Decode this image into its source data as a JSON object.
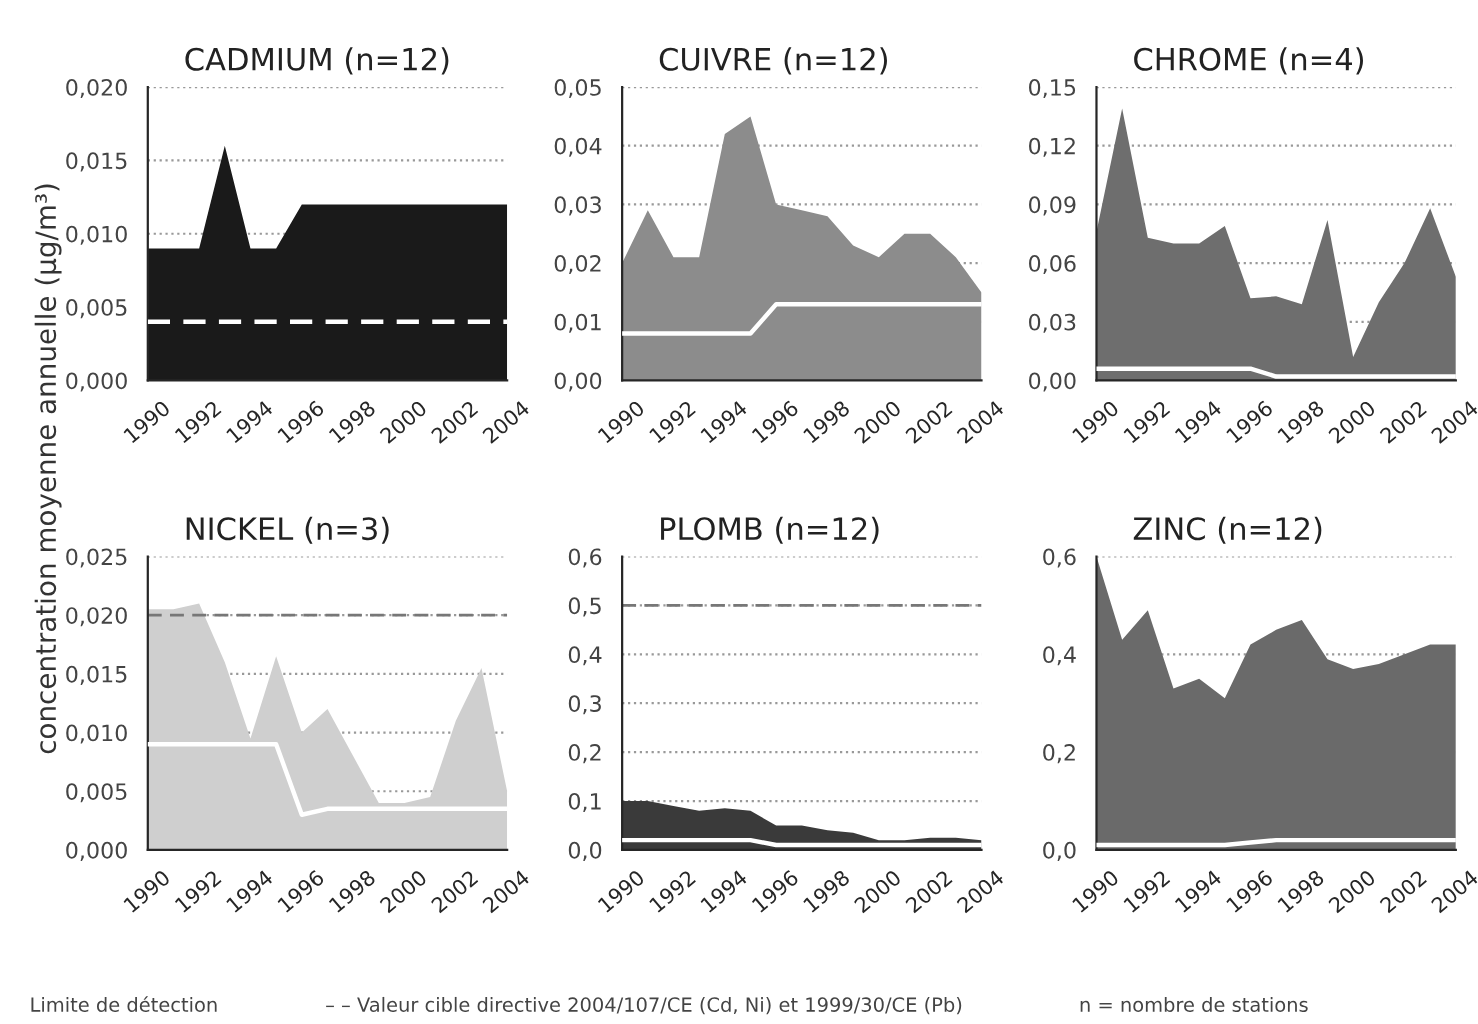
{
  "chart_data": [
    {
      "type": "area",
      "title": "CADMIUM (n=12)",
      "x": [
        1990,
        1991,
        1992,
        1993,
        1994,
        1995,
        1996,
        1997,
        1998,
        1999,
        2000,
        2001,
        2002,
        2003,
        2004
      ],
      "xlim": [
        1990,
        2004
      ],
      "xticks": [
        1990,
        1992,
        1994,
        1996,
        1998,
        2000,
        2002,
        2004
      ],
      "ylim": [
        0,
        0.02
      ],
      "yticks": [
        {
          "value": 0,
          "label": "0,000"
        },
        {
          "value": 0.005,
          "label": "0,005"
        },
        {
          "value": 0.01,
          "label": "0,010"
        },
        {
          "value": 0.015,
          "label": "0,015"
        },
        {
          "value": 0.02,
          "label": "0,020"
        }
      ],
      "grid": "y",
      "series": [
        {
          "color": "#1a1a1a",
          "values": [
            0.009,
            0.009,
            0.009,
            0.016,
            0.009,
            0.009,
            0.012,
            0.012,
            0.012,
            0.012,
            0.012,
            0.012,
            0.012,
            0.012,
            0.012
          ]
        },
        {
          "type": "line",
          "color": "#ffffff",
          "line_style": "dashed",
          "values": [
            0.004,
            0.004,
            0.004,
            0.004,
            0.004,
            0.004,
            0.004,
            0.004,
            0.004,
            0.004,
            0.004,
            0.004,
            0.004,
            0.004,
            0.004
          ]
        }
      ]
    },
    {
      "type": "area",
      "title": "CUIVRE (n=12)",
      "x": [
        1990,
        1991,
        1992,
        1993,
        1994,
        1995,
        1996,
        1997,
        1998,
        1999,
        2000,
        2001,
        2002,
        2003,
        2004
      ],
      "xlim": [
        1990,
        2004
      ],
      "xticks": [
        1990,
        1992,
        1994,
        1996,
        1998,
        2000,
        2002,
        2004
      ],
      "ylim": [
        0,
        0.05
      ],
      "yticks": [
        {
          "value": 0,
          "label": "0,00"
        },
        {
          "value": 0.01,
          "label": "0,01"
        },
        {
          "value": 0.02,
          "label": "0,02"
        },
        {
          "value": 0.03,
          "label": "0,03"
        },
        {
          "value": 0.04,
          "label": "0,04"
        },
        {
          "value": 0.05,
          "label": "0,05"
        }
      ],
      "grid": "y",
      "series": [
        {
          "color": "#8c8c8c",
          "values": [
            0.02,
            0.029,
            0.021,
            0.021,
            0.042,
            0.045,
            0.03,
            0.029,
            0.028,
            0.023,
            0.021,
            0.025,
            0.025,
            0.021,
            0.015
          ]
        },
        {
          "type": "line",
          "color": "#ffffff",
          "values": [
            0.008,
            0.008,
            0.008,
            0.008,
            0.008,
            0.008,
            0.013,
            0.013,
            0.013,
            0.013,
            0.013,
            0.013,
            0.013,
            0.013,
            0.013
          ]
        }
      ]
    },
    {
      "type": "area",
      "title": "CHROME (n=4)",
      "x": [
        1990,
        1991,
        1992,
        1993,
        1994,
        1995,
        1996,
        1997,
        1998,
        1999,
        2000,
        2001,
        2002,
        2003,
        2004
      ],
      "xlim": [
        1990,
        2004
      ],
      "xticks": [
        1990,
        1992,
        1994,
        1996,
        1998,
        2000,
        2002,
        2004
      ],
      "ylim": [
        0,
        0.15
      ],
      "yticks": [
        {
          "value": 0,
          "label": "0,00"
        },
        {
          "value": 0.03,
          "label": "0,03"
        },
        {
          "value": 0.06,
          "label": "0,06"
        },
        {
          "value": 0.09,
          "label": "0,09"
        },
        {
          "value": 0.12,
          "label": "0,12"
        },
        {
          "value": 0.15,
          "label": "0,15"
        }
      ],
      "grid": "y",
      "series": [
        {
          "color": "#6e6e6e",
          "values": [
            0.076,
            0.139,
            0.073,
            0.07,
            0.07,
            0.079,
            0.042,
            0.043,
            0.039,
            0.082,
            0.012,
            0.04,
            0.06,
            0.088,
            0.053
          ]
        },
        {
          "type": "line",
          "color": "#ffffff",
          "values": [
            0.006,
            0.006,
            0.006,
            0.006,
            0.006,
            0.006,
            0.006,
            0.002,
            0.002,
            0.002,
            0.002,
            0.002,
            0.002,
            0.002,
            0.002
          ]
        }
      ]
    },
    {
      "type": "area",
      "title": "NICKEL (n=3)",
      "ylabel": "concentration moyenne annuelle (µg/m³)",
      "x": [
        1990,
        1991,
        1992,
        1993,
        1994,
        1995,
        1996,
        1997,
        1998,
        1999,
        2000,
        2001,
        2002,
        2003,
        2004
      ],
      "xlim": [
        1990,
        2004
      ],
      "xticks": [
        1990,
        1992,
        1994,
        1996,
        1998,
        2000,
        2002,
        2004
      ],
      "ylim": [
        0,
        0.025
      ],
      "yticks": [
        {
          "value": 0,
          "label": "0,000"
        },
        {
          "value": 0.005,
          "label": "0,005"
        },
        {
          "value": 0.01,
          "label": "0,010"
        },
        {
          "value": 0.015,
          "label": "0,015"
        },
        {
          "value": 0.02,
          "label": "0,020"
        },
        {
          "value": 0.025,
          "label": "0,025"
        }
      ],
      "grid": "y",
      "ref_lines": [
        {
          "axis": "y",
          "value": 0.02,
          "color": "#777777",
          "line_style": "dashed"
        }
      ],
      "series": [
        {
          "color": "#cfcfcf",
          "values": [
            0.0205,
            0.0205,
            0.021,
            0.016,
            0.0095,
            0.0165,
            0.01,
            0.012,
            0.008,
            0.004,
            0.004,
            0.0045,
            0.011,
            0.0155,
            0.005
          ]
        },
        {
          "type": "line",
          "color": "#ffffff",
          "values": [
            0.009,
            0.009,
            0.009,
            0.009,
            0.009,
            0.009,
            0.003,
            0.0035,
            0.0035,
            0.0035,
            0.0035,
            0.0035,
            0.0035,
            0.0035,
            0.0035
          ]
        }
      ]
    },
    {
      "type": "area",
      "title": "PLOMB (n=12)",
      "x": [
        1990,
        1991,
        1992,
        1993,
        1994,
        1995,
        1996,
        1997,
        1998,
        1999,
        2000,
        2001,
        2002,
        2003,
        2004
      ],
      "xlim": [
        1990,
        2004
      ],
      "xticks": [
        1990,
        1992,
        1994,
        1996,
        1998,
        2000,
        2002,
        2004
      ],
      "ylim": [
        0,
        0.6
      ],
      "yticks": [
        {
          "value": 0,
          "label": "0,0"
        },
        {
          "value": 0.1,
          "label": "0,1"
        },
        {
          "value": 0.2,
          "label": "0,2"
        },
        {
          "value": 0.3,
          "label": "0,3"
        },
        {
          "value": 0.4,
          "label": "0,4"
        },
        {
          "value": 0.5,
          "label": "0,5"
        },
        {
          "value": 0.6,
          "label": "0,6"
        }
      ],
      "grid": "y",
      "ref_lines": [
        {
          "axis": "y",
          "value": 0.5,
          "color": "#777777",
          "line_style": "dashed"
        }
      ],
      "series": [
        {
          "color": "#3a3a3a",
          "values": [
            0.1,
            0.1,
            0.09,
            0.08,
            0.085,
            0.08,
            0.05,
            0.05,
            0.04,
            0.035,
            0.02,
            0.02,
            0.025,
            0.025,
            0.02
          ]
        },
        {
          "type": "line",
          "color": "#ffffff",
          "values": [
            0.02,
            0.02,
            0.02,
            0.02,
            0.02,
            0.02,
            0.01,
            0.01,
            0.01,
            0.01,
            0.01,
            0.01,
            0.01,
            0.01,
            0.01
          ]
        }
      ]
    },
    {
      "type": "area",
      "title": "ZINC (n=12)",
      "x": [
        1990,
        1991,
        1992,
        1993,
        1994,
        1995,
        1996,
        1997,
        1998,
        1999,
        2000,
        2001,
        2002,
        2003,
        2004
      ],
      "xlim": [
        1990,
        2004
      ],
      "xticks": [
        1990,
        1992,
        1994,
        1996,
        1998,
        2000,
        2002,
        2004
      ],
      "ylim": [
        0,
        0.6
      ],
      "yticks": [
        {
          "value": 0,
          "label": "0,0"
        },
        {
          "value": 0.2,
          "label": "0,2"
        },
        {
          "value": 0.4,
          "label": "0,4"
        },
        {
          "value": 0.6,
          "label": "0,6"
        }
      ],
      "grid": "y",
      "annotations": [
        "Limite de détection",
        "– – Valeur cible directive 2004/107/CE (Cd, Ni) et 1999/30/CE (Pb)",
        "n = nombre de stations"
      ],
      "series": [
        {
          "color": "#6a6a6a",
          "values": [
            0.6,
            0.43,
            0.49,
            0.33,
            0.35,
            0.31,
            0.42,
            0.45,
            0.47,
            0.39,
            0.37,
            0.38,
            0.4,
            0.42,
            0.42
          ]
        },
        {
          "type": "line",
          "color": "#ffffff",
          "values": [
            0.01,
            0.01,
            0.01,
            0.01,
            0.01,
            0.01,
            0.015,
            0.02,
            0.02,
            0.02,
            0.02,
            0.02,
            0.02,
            0.02,
            0.02
          ]
        }
      ]
    }
  ]
}
